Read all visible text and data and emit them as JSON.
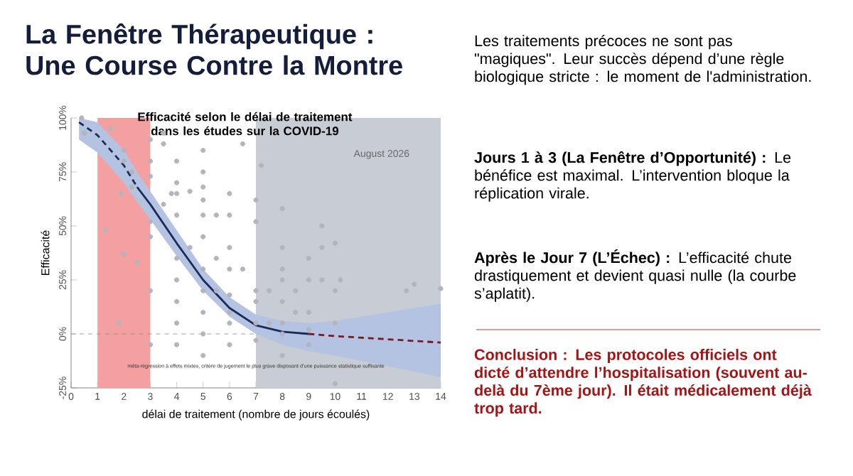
{
  "chart_data": {
    "type": "scatter",
    "title": "La Fenêtre Thérapeutique : Une Course Contre la Montre",
    "subtitle": "Efficacité selon le délai de traitement dans les études sur la COVID-19",
    "xlabel": "délai de traitement (nombre de jours écoulés)",
    "ylabel": "Efficacité",
    "xlim": [
      0,
      14
    ],
    "xticks": [
      0,
      1,
      2,
      3,
      4,
      5,
      6,
      7,
      8,
      9,
      10,
      11,
      12,
      13,
      14
    ],
    "ylim": [
      -25,
      100
    ],
    "yticks": [
      {
        "value": -25,
        "label": "-25%"
      },
      {
        "value": 0,
        "label": "0%"
      },
      {
        "value": 25,
        "label": "25%"
      },
      {
        "value": 50,
        "label": "50%"
      },
      {
        "value": 75,
        "label": "75%"
      },
      {
        "value": 100,
        "label": "100%"
      }
    ],
    "marker": "circle",
    "series": [
      {
        "color": "#b4b4bc",
        "x": [
          0.5,
          0.4,
          1.5,
          2,
          2,
          2.3,
          1.9,
          2.3,
          1.3,
          2,
          2.5,
          3,
          3,
          3,
          3,
          3,
          3,
          3,
          1.8,
          3.5,
          3.5,
          3.5,
          4,
          4,
          4,
          4,
          4,
          4,
          4,
          4,
          4,
          3.8,
          4.5,
          4.5,
          5,
          5,
          5,
          5,
          5,
          5,
          5,
          5,
          5,
          5,
          5,
          5.5,
          5.5,
          5.5,
          6,
          6,
          6,
          6,
          6,
          6,
          6,
          6,
          6.5,
          6.5,
          7,
          7,
          7,
          7,
          7,
          7,
          7.2,
          7.5,
          7.5,
          8,
          8,
          8,
          8,
          8,
          8,
          8,
          8,
          8.5,
          8.5,
          9,
          9,
          9,
          9,
          9,
          9.5,
          9.5,
          9.5,
          10,
          10,
          10,
          10,
          10.2,
          12.7,
          13,
          14
        ],
        "values": [
          93,
          100,
          95,
          85,
          80,
          75,
          65,
          68,
          48,
          37,
          33,
          90,
          80,
          73,
          52,
          45,
          20,
          -5,
          5,
          93,
          88,
          60,
          80,
          70,
          65,
          55,
          35,
          25,
          15,
          5,
          -5,
          65,
          66,
          40,
          85,
          75,
          68,
          62,
          55,
          45,
          30,
          20,
          10,
          0,
          -10,
          55,
          35,
          20,
          65,
          55,
          40,
          30,
          18,
          10,
          5,
          -5,
          30,
          88,
          62,
          52,
          20,
          15,
          5,
          -3,
          78,
          20,
          5,
          58,
          40,
          30,
          25,
          15,
          5,
          0,
          -10,
          20,
          10,
          35,
          25,
          10,
          2,
          -5,
          50,
          40,
          25,
          42,
          20,
          5,
          -23,
          25,
          20,
          23,
          21
        ]
      },
      {
        "type": "line",
        "marker": "none",
        "line_style": "dashed",
        "color": "#1a2a5a",
        "x": [
          0.3,
          1,
          2,
          2.5
        ],
        "values": [
          98,
          92,
          78,
          68
        ],
        "lower": [
          90,
          84,
          70,
          61
        ],
        "upper": [
          100,
          98,
          85,
          75
        ]
      },
      {
        "type": "line",
        "marker": "none",
        "line_style": "solid",
        "color": "#1a2a5a",
        "x": [
          2.5,
          3,
          4,
          5,
          6,
          7,
          8,
          9
        ],
        "values": [
          68,
          60,
          42,
          25,
          12,
          4,
          1,
          0
        ],
        "lower": [
          61,
          53,
          36,
          20,
          8,
          0,
          -5,
          -8
        ],
        "upper": [
          75,
          66,
          48,
          30,
          17,
          9,
          6,
          5
        ]
      },
      {
        "type": "line",
        "marker": "none",
        "line_style": "dashed",
        "color": "#7a1a20",
        "x": [
          9,
          10,
          12,
          14
        ],
        "values": [
          0,
          -1,
          -2.5,
          -4
        ],
        "lower": [
          -8,
          -10,
          -15,
          -20
        ],
        "upper": [
          5,
          6,
          10,
          14
        ]
      }
    ],
    "bands": [
      {
        "axis": "x",
        "from": 1,
        "to": 3,
        "color": "#f4a0a0"
      },
      {
        "axis": "x",
        "from": 7,
        "to": 14,
        "color": "#c8ccd4"
      }
    ],
    "ref_lines": [
      {
        "axis": "y",
        "value": 0,
        "color": "#888888",
        "line_style": "dashed"
      }
    ],
    "annotations": [
      "méta-régression à effets mixtes, critère de jugement le plus grave disposant d’une puissance statistique suffisante",
      "August 2026",
      "Les traitements précoces ne sont pas \"magiques\". Leur succès dépend d’une règle biologique stricte : le moment de l'administration.",
      "**Jours 1 à 3 (La Fenêtre d’Opportunité) :** Le bénéfice est maximal. L’intervention bloque la réplication virale.",
      "**Après le Jour 7 (L’Échec) :** L’efficacité chute drastiquement et devient quasi nulle (la courbe s’aplatit).",
      "**Conclusion : Les protocoles officiels ont dicté d’attendre l’hospitalisation (souvent au-delà du 7ème jour). Il était médicalement déjà trop tard.**"
    ]
  }
}
